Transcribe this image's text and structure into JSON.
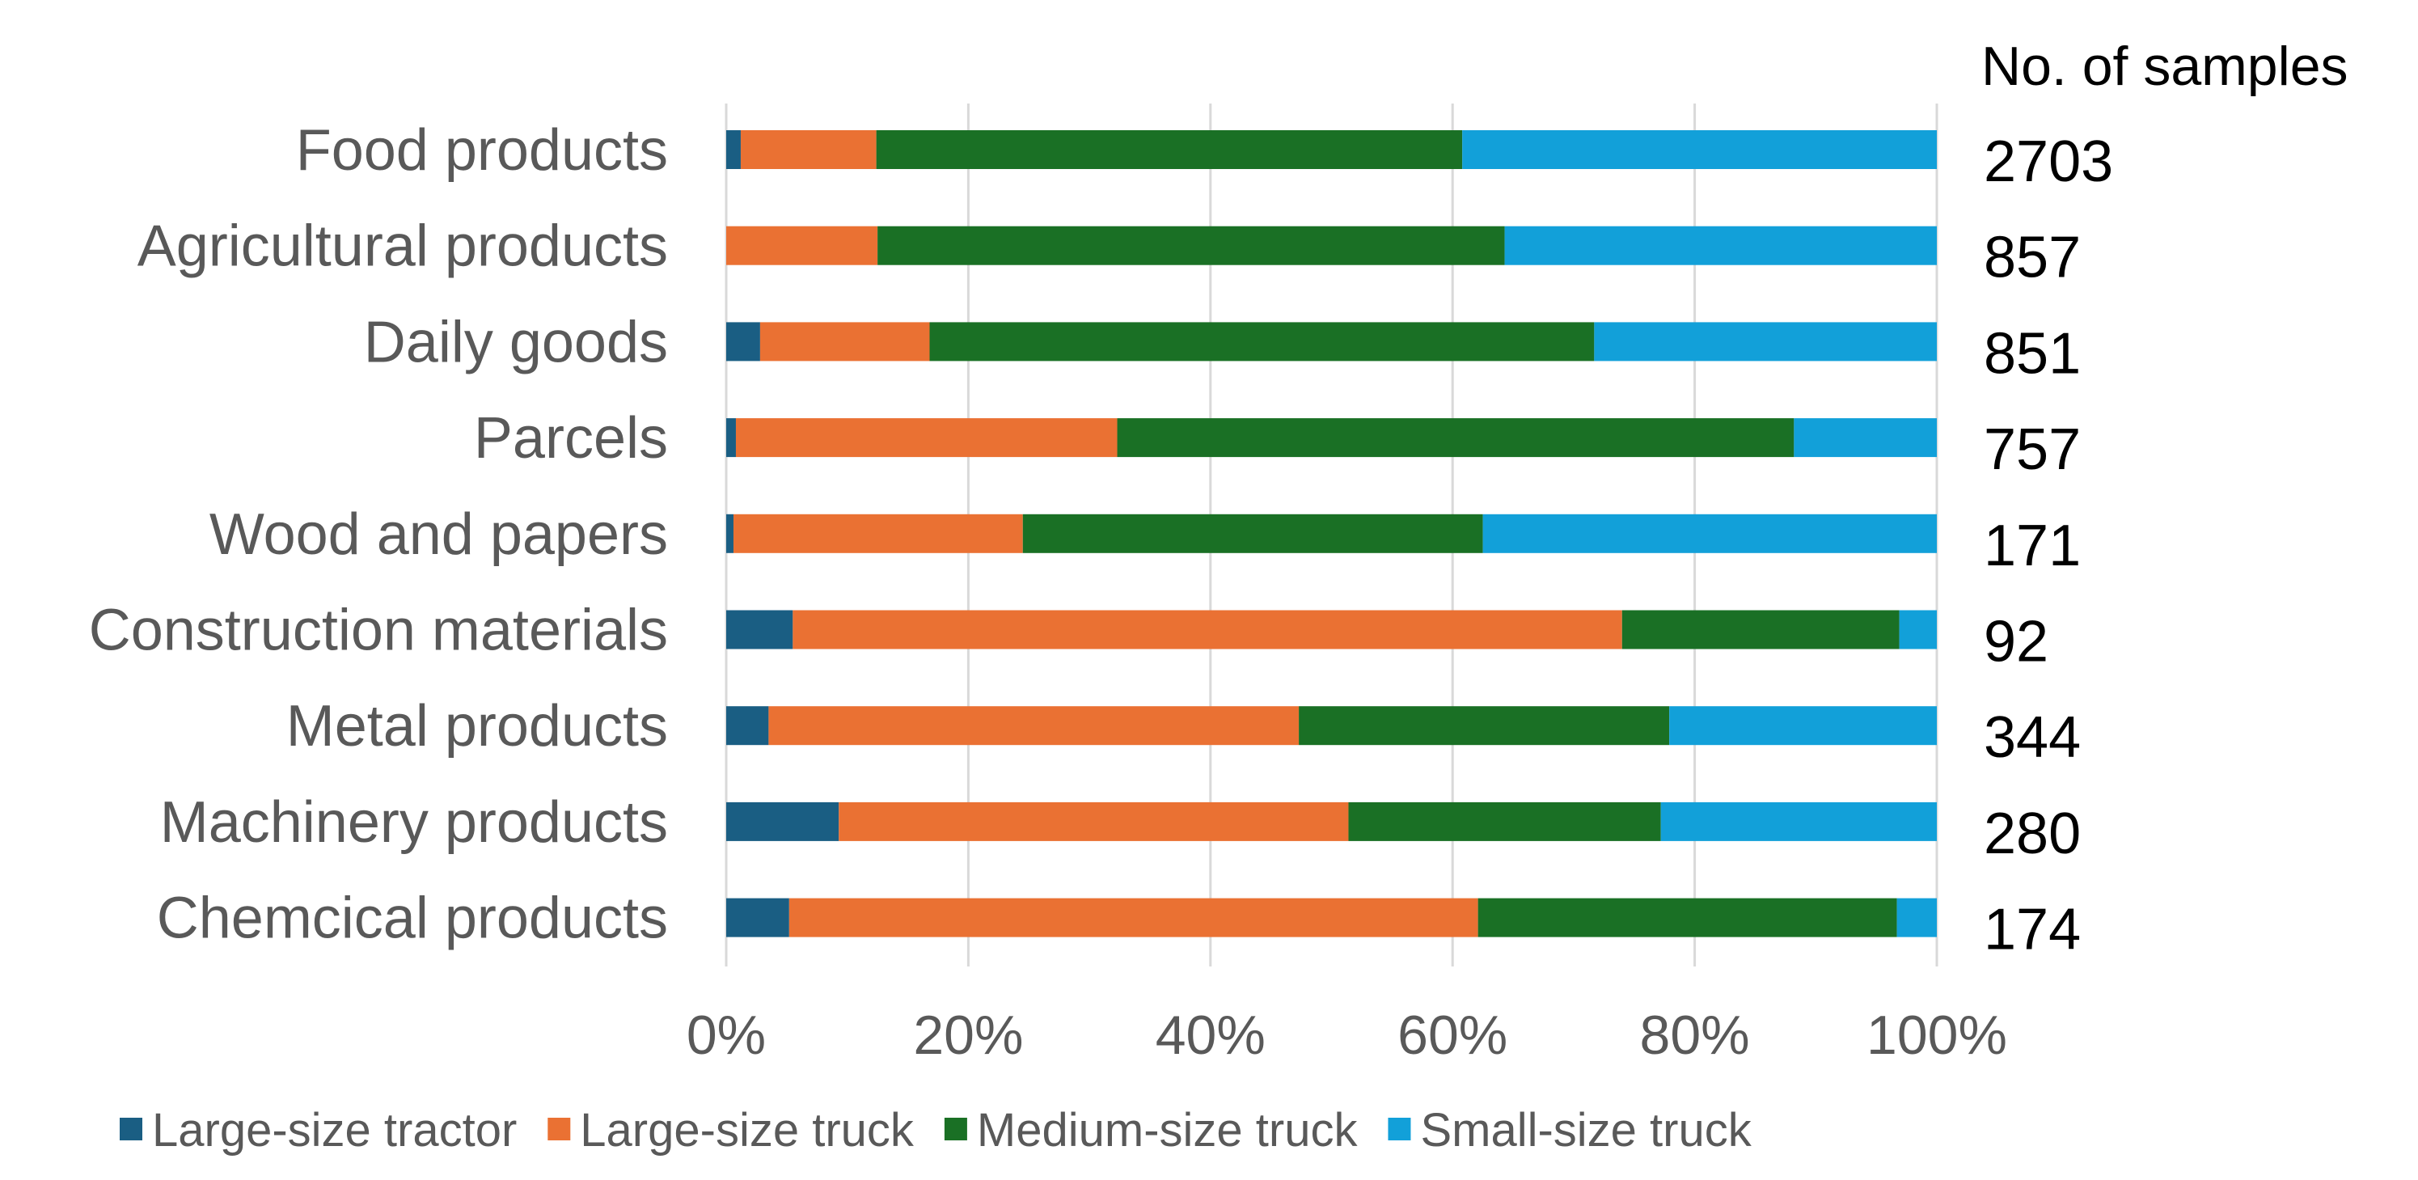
{
  "chart_data": {
    "type": "bar",
    "orientation": "horizontal",
    "stacked": "percent",
    "categories": [
      "Food products",
      "Agricultural products",
      "Daily goods",
      "Parcels",
      "Wood and papers",
      "Construction materials",
      "Metal products",
      "Machinery products",
      "Chemcical products"
    ],
    "series": [
      {
        "name": "Large-size tractor",
        "color": "#1a5e83",
        "values": [
          1.2,
          0.0,
          2.8,
          0.8,
          0.6,
          5.5,
          3.5,
          9.3,
          5.2
        ]
      },
      {
        "name": "Large-size truck",
        "color": "#ea7133",
        "values": [
          11.2,
          12.5,
          14.0,
          31.5,
          23.9,
          68.5,
          43.8,
          42.1,
          56.9
        ]
      },
      {
        "name": "Medium-size truck",
        "color": "#1a7025",
        "values": [
          48.4,
          51.8,
          54.9,
          55.9,
          38.0,
          22.9,
          30.6,
          25.8,
          34.6
        ]
      },
      {
        "name": "Small-size truck",
        "color": "#12a0d9",
        "values": [
          39.2,
          35.7,
          28.3,
          11.8,
          37.5,
          3.1,
          22.1,
          22.8,
          3.3
        ]
      }
    ],
    "sample_header": "No. of samples",
    "sample_counts": [
      "2703",
      "857",
      "851",
      "757",
      "171",
      "92",
      "344",
      "280",
      "174"
    ],
    "x_ticks": [
      "0%",
      "20%",
      "40%",
      "60%",
      "80%",
      "100%"
    ],
    "xlim": [
      0,
      100
    ],
    "grid": true,
    "legend": "bottom",
    "title": "",
    "xlabel": "",
    "ylabel": ""
  }
}
